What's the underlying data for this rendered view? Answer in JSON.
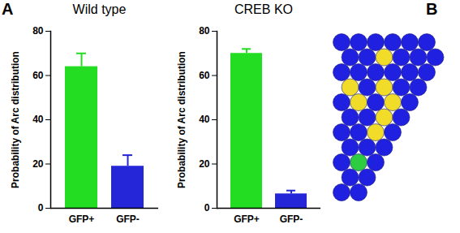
{
  "panel_labels": [
    "A",
    "B"
  ],
  "chart_data": [
    {
      "type": "bar",
      "title": "Wild type",
      "ylabel": "Probability of Arc distribution",
      "categories": [
        "GFP+",
        "GFP-"
      ],
      "values": [
        64,
        19
      ],
      "errors": [
        6,
        5
      ],
      "colors": [
        "#22dd22",
        "#2626d9"
      ],
      "ylim": [
        0,
        80
      ],
      "yticks": [
        0,
        20,
        40,
        60,
        80
      ]
    },
    {
      "type": "bar",
      "title": "CREB KO",
      "ylabel": "Probability of Arc distribution",
      "categories": [
        "GFP+",
        "GFP-"
      ],
      "values": [
        70,
        6.5
      ],
      "errors": [
        2,
        1.5
      ],
      "colors": [
        "#22dd22",
        "#2626d9"
      ],
      "ylim": [
        0,
        80
      ],
      "yticks": [
        0,
        20,
        40,
        60,
        80
      ]
    }
  ]
}
